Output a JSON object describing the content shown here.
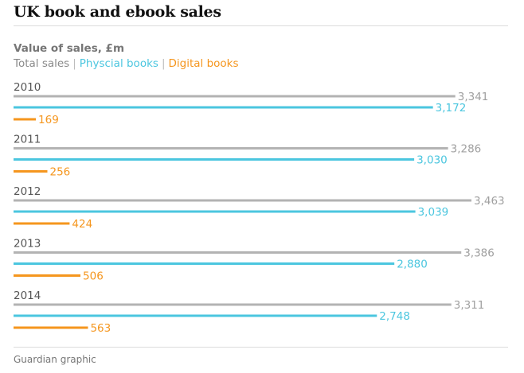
{
  "title": "UK book and ebook sales",
  "subtitle": "Value of sales, £m",
  "legend": {
    "sep": "|",
    "items": [
      {
        "label": "Total sales",
        "color": "#8a8a8a"
      },
      {
        "label": "Physcial books",
        "color": "#4bc6df"
      },
      {
        "label": "Digital books",
        "color": "#f5961e"
      }
    ]
  },
  "source": "Guardian graphic",
  "chart_data": {
    "type": "bar",
    "orientation": "horizontal",
    "categories": [
      "2010",
      "2011",
      "2012",
      "2013",
      "2014"
    ],
    "series": [
      {
        "name": "Total sales",
        "color": "#b3b3b3",
        "label_color": "#a0a0a0",
        "values": [
          3341,
          3286,
          3463,
          3386,
          3311
        ],
        "labels": [
          "3,341",
          "3,286",
          "3,463",
          "3,386",
          "3,311"
        ]
      },
      {
        "name": "Physcial books",
        "color": "#4bc6df",
        "label_color": "#4bc6df",
        "values": [
          3172,
          3030,
          3039,
          2880,
          2748
        ],
        "labels": [
          "3,172",
          "3,030",
          "3,039",
          "2,880",
          "2,748"
        ]
      },
      {
        "name": "Digital books",
        "color": "#f5961e",
        "label_color": "#f5961e",
        "values": [
          169,
          256,
          424,
          506,
          563
        ],
        "labels": [
          "169",
          "256",
          "424",
          "506",
          "563"
        ]
      }
    ],
    "xlim": [
      0,
      3463
    ],
    "grid": false,
    "legend": "top-left"
  }
}
